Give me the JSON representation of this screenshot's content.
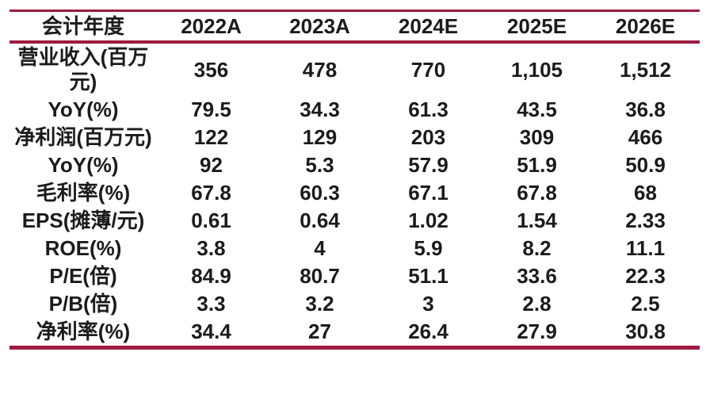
{
  "table": {
    "header": [
      "会计年度",
      "2022A",
      "2023A",
      "2024E",
      "2025E",
      "2026E"
    ],
    "rows": [
      {
        "label": "营业收入(百万元)",
        "values": [
          "356",
          "478",
          "770",
          "1,105",
          "1,512"
        ]
      },
      {
        "label": "YoY(%)",
        "values": [
          "79.5",
          "34.3",
          "61.3",
          "43.5",
          "36.8"
        ]
      },
      {
        "label": "净利润(百万元)",
        "values": [
          "122",
          "129",
          "203",
          "309",
          "466"
        ]
      },
      {
        "label": "YoY(%)",
        "values": [
          "92",
          "5.3",
          "57.9",
          "51.9",
          "50.9"
        ]
      },
      {
        "label": "毛利率(%)",
        "values": [
          "67.8",
          "60.3",
          "67.1",
          "67.8",
          "68"
        ]
      },
      {
        "label": "EPS(摊薄/元)",
        "values": [
          "0.61",
          "0.64",
          "1.02",
          "1.54",
          "2.33"
        ]
      },
      {
        "label": "ROE(%)",
        "values": [
          "3.8",
          "4",
          "5.9",
          "8.2",
          "11.1"
        ]
      },
      {
        "label": "P/E(倍)",
        "values": [
          "84.9",
          "80.7",
          "51.1",
          "33.6",
          "22.3"
        ]
      },
      {
        "label": "P/B(倍)",
        "values": [
          "3.3",
          "3.2",
          "3",
          "2.8",
          "2.5"
        ]
      },
      {
        "label": "净利率(%)",
        "values": [
          "34.4",
          "27",
          "26.4",
          "27.9",
          "30.8"
        ]
      }
    ]
  },
  "colors": {
    "rule": "#9c1b40",
    "text": "#1b1b1b",
    "background": "#ffffff"
  },
  "chart_data": {
    "type": "table",
    "first_column_header": "会计年度",
    "categories": [
      "2022A",
      "2023A",
      "2024E",
      "2025E",
      "2026E"
    ],
    "series": [
      {
        "name": "营业收入(百万元)",
        "values": [
          356,
          478,
          770,
          1105,
          1512
        ]
      },
      {
        "name": "YoY(%)",
        "values": [
          79.5,
          34.3,
          61.3,
          43.5,
          36.8
        ]
      },
      {
        "name": "净利润(百万元)",
        "values": [
          122,
          129,
          203,
          309,
          466
        ]
      },
      {
        "name": "YoY(%)",
        "values": [
          92,
          5.3,
          57.9,
          51.9,
          50.9
        ]
      },
      {
        "name": "毛利率(%)",
        "values": [
          67.8,
          60.3,
          67.1,
          67.8,
          68
        ]
      },
      {
        "name": "EPS(摊薄/元)",
        "values": [
          0.61,
          0.64,
          1.02,
          1.54,
          2.33
        ]
      },
      {
        "name": "ROE(%)",
        "values": [
          3.8,
          4,
          5.9,
          8.2,
          11.1
        ]
      },
      {
        "name": "P/E(倍)",
        "values": [
          84.9,
          80.7,
          51.1,
          33.6,
          22.3
        ]
      },
      {
        "name": "P/B(倍)",
        "values": [
          3.3,
          3.2,
          3,
          2.8,
          2.5
        ]
      },
      {
        "name": "净利率(%)",
        "values": [
          34.4,
          27,
          26.4,
          27.9,
          30.8
        ]
      }
    ],
    "layout": {
      "grid": false,
      "rules": [
        "top",
        "below-header",
        "bottom"
      ],
      "rule_color": "#9c1b40"
    }
  }
}
